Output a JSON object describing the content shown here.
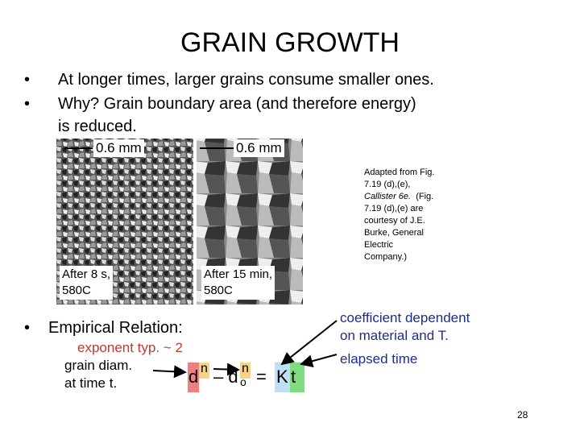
{
  "title": "GRAIN GROWTH",
  "bullets": [
    "At longer times, larger grains consume smaller ones.",
    "Why?  Grain boundary area (and therefore energy)",
    "is reduced."
  ],
  "images": [
    {
      "scale": "0.6 mm",
      "caption": [
        "After 8 s,",
        "580C"
      ]
    },
    {
      "scale": "0.6 mm",
      "caption": [
        "After 15 min,",
        "580C"
      ]
    }
  ],
  "credit": {
    "lines": [
      "Adapted from Fig.",
      "7.19 (d),(e),"
    ],
    "italic": "Callister 6e.",
    "rest": [
      "(Fig.",
      "7.19 (d),(e) are",
      "courtesy of J.E.",
      "Burke, General",
      "Electric",
      "Company.)"
    ]
  },
  "empirical": "Empirical Relation:",
  "exponent_note": "exponent typ. ~ 2",
  "grain_note": [
    "grain diam.",
    "at time t."
  ],
  "coefficient_note": [
    "coefficient dependent",
    "on material and T."
  ],
  "time_note": "elapsed time",
  "equation": {
    "d": "d",
    "n1": "n",
    "minus": "– d",
    "o": "o",
    "n2": "n",
    "eq": "=",
    "K": "K",
    "t": "t"
  },
  "page": "28"
}
